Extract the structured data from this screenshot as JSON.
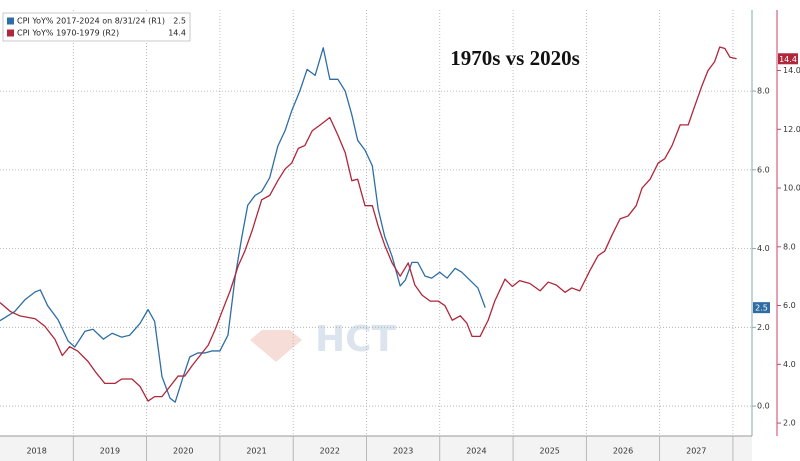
{
  "chart_data": {
    "type": "line",
    "title": "1970s vs 2020s",
    "watermark": "HCT",
    "xlim": [
      2018,
      2028.26
    ],
    "xticks": [
      {
        "value": 2018.5,
        "label": "2018"
      },
      {
        "value": 2019.5,
        "label": "2019"
      },
      {
        "value": 2020.5,
        "label": "2020"
      },
      {
        "value": 2021.5,
        "label": "2021"
      },
      {
        "value": 2022.5,
        "label": "2022"
      },
      {
        "value": 2023.5,
        "label": "2023"
      },
      {
        "value": 2024.5,
        "label": "2024"
      },
      {
        "value": 2025.5,
        "label": "2025"
      },
      {
        "value": 2026.5,
        "label": "2026"
      },
      {
        "value": 2027.5,
        "label": "2027"
      }
    ],
    "xgrid": [
      2019,
      2020,
      2021,
      2022,
      2023,
      2024,
      2025,
      2026,
      2027,
      2028
    ],
    "ylim": [
      -0.76,
      10.06
    ],
    "yticks": [
      {
        "value": 0,
        "label": "0.0"
      },
      {
        "value": 2,
        "label": "2.0"
      },
      {
        "value": 4,
        "label": "4.0"
      },
      {
        "value": 6,
        "label": "6.0"
      },
      {
        "value": 8,
        "label": "8.0"
      }
    ],
    "y2lim": [
      1.56,
      16.06
    ],
    "y2ticks": [
      {
        "value": 2,
        "label": "2.0"
      },
      {
        "value": 4,
        "label": "4.0"
      },
      {
        "value": 6,
        "label": "6.0"
      },
      {
        "value": 8,
        "label": "8.0"
      },
      {
        "value": 10,
        "label": "10.0"
      },
      {
        "value": 12,
        "label": "12.0"
      },
      {
        "value": 14,
        "label": "14.0"
      }
    ],
    "grid": true,
    "series": [
      {
        "name": "CPI YoY% 2017-2024 on 8/31/24 (R1)",
        "color": "#2f6ea5",
        "axis": "y",
        "last_value": 2.5,
        "x": [
          2018.0,
          2018.2,
          2018.34,
          2018.48,
          2018.55,
          2018.65,
          2018.79,
          2018.93,
          2019.02,
          2019.16,
          2019.27,
          2019.41,
          2019.53,
          2019.66,
          2019.77,
          2019.91,
          2020.02,
          2020.11,
          2020.21,
          2020.32,
          2020.39,
          2020.5,
          2020.59,
          2020.7,
          2020.8,
          2020.89,
          2021.0,
          2021.11,
          2021.21,
          2021.3,
          2021.38,
          2021.48,
          2021.57,
          2021.68,
          2021.79,
          2021.89,
          2021.98,
          2022.09,
          2022.19,
          2022.3,
          2022.41,
          2022.5,
          2022.61,
          2022.71,
          2022.8,
          2022.88,
          2022.98,
          2023.08,
          2023.16,
          2023.25,
          2023.35,
          2023.46,
          2023.53,
          2023.62,
          2023.7,
          2023.8,
          2023.89,
          2024.0,
          2024.1,
          2024.21,
          2024.3,
          2024.41,
          2024.52,
          2024.62
        ],
        "values": [
          2.17,
          2.4,
          2.7,
          2.9,
          2.95,
          2.55,
          2.2,
          1.65,
          1.5,
          1.9,
          1.95,
          1.7,
          1.85,
          1.75,
          1.8,
          2.1,
          2.45,
          2.15,
          0.75,
          0.2,
          0.1,
          0.75,
          1.25,
          1.35,
          1.35,
          1.4,
          1.4,
          1.8,
          3.3,
          4.3,
          5.1,
          5.35,
          5.45,
          5.8,
          6.6,
          7.0,
          7.5,
          8.0,
          8.55,
          8.4,
          9.1,
          8.3,
          8.3,
          8.0,
          7.4,
          6.75,
          6.5,
          6.1,
          5.0,
          4.3,
          3.8,
          3.05,
          3.2,
          3.65,
          3.65,
          3.3,
          3.25,
          3.4,
          3.25,
          3.5,
          3.4,
          3.2,
          3.0,
          2.5
        ]
      },
      {
        "name": "CPI YoY% 1970-1979 (R2)",
        "color": "#b0263a",
        "axis": "y2",
        "last_value": 14.4,
        "x": [
          2018.0,
          2018.14,
          2018.27,
          2018.48,
          2018.61,
          2018.75,
          2018.85,
          2018.95,
          2019.06,
          2019.2,
          2019.3,
          2019.43,
          2019.57,
          2019.66,
          2019.8,
          2019.91,
          2020.02,
          2020.11,
          2020.21,
          2020.32,
          2020.43,
          2020.52,
          2020.62,
          2020.73,
          2020.84,
          2020.93,
          2021.03,
          2021.14,
          2021.25,
          2021.34,
          2021.44,
          2021.57,
          2021.68,
          2021.79,
          2021.89,
          2021.98,
          2022.07,
          2022.16,
          2022.26,
          2022.37,
          2022.5,
          2022.61,
          2022.71,
          2022.8,
          2022.88,
          2022.98,
          2023.08,
          2023.16,
          2023.25,
          2023.35,
          2023.46,
          2023.57,
          2023.66,
          2023.76,
          2023.87,
          2023.98,
          2024.07,
          2024.17,
          2024.28,
          2024.37,
          2024.44,
          2024.55,
          2024.66,
          2024.75,
          2024.89,
          2024.99,
          2025.09,
          2025.23,
          2025.37,
          2025.48,
          2025.59,
          2025.71,
          2025.8,
          2025.91,
          2026.05,
          2026.16,
          2026.25,
          2026.35,
          2026.46,
          2026.57,
          2026.68,
          2026.76,
          2026.87,
          2026.98,
          2027.07,
          2027.17,
          2027.28,
          2027.39,
          2027.48,
          2027.58,
          2027.66,
          2027.75,
          2027.82,
          2027.89,
          2027.96,
          2028.05
        ],
        "values": [
          6.1,
          5.8,
          5.65,
          5.55,
          5.3,
          4.85,
          4.3,
          4.6,
          4.45,
          4.1,
          3.75,
          3.35,
          3.35,
          3.5,
          3.5,
          3.25,
          2.75,
          2.9,
          2.9,
          3.25,
          3.6,
          3.6,
          3.95,
          4.3,
          4.65,
          5.15,
          5.8,
          6.5,
          7.35,
          7.85,
          8.55,
          9.6,
          9.75,
          10.25,
          10.65,
          10.85,
          11.35,
          11.45,
          11.95,
          12.15,
          12.4,
          11.8,
          11.2,
          10.25,
          10.3,
          9.4,
          9.4,
          8.7,
          8.05,
          7.45,
          7.0,
          7.45,
          6.7,
          6.35,
          6.15,
          6.15,
          6.0,
          5.5,
          5.65,
          5.4,
          4.95,
          4.95,
          5.5,
          6.15,
          6.9,
          6.65,
          6.85,
          6.75,
          6.5,
          6.8,
          6.7,
          6.45,
          6.6,
          6.5,
          7.2,
          7.7,
          7.85,
          8.4,
          8.95,
          9.05,
          9.4,
          10.0,
          10.3,
          10.85,
          11.0,
          11.45,
          12.15,
          12.15,
          12.8,
          13.5,
          14.0,
          14.3,
          14.8,
          14.75,
          14.45,
          14.4
        ]
      }
    ]
  }
}
